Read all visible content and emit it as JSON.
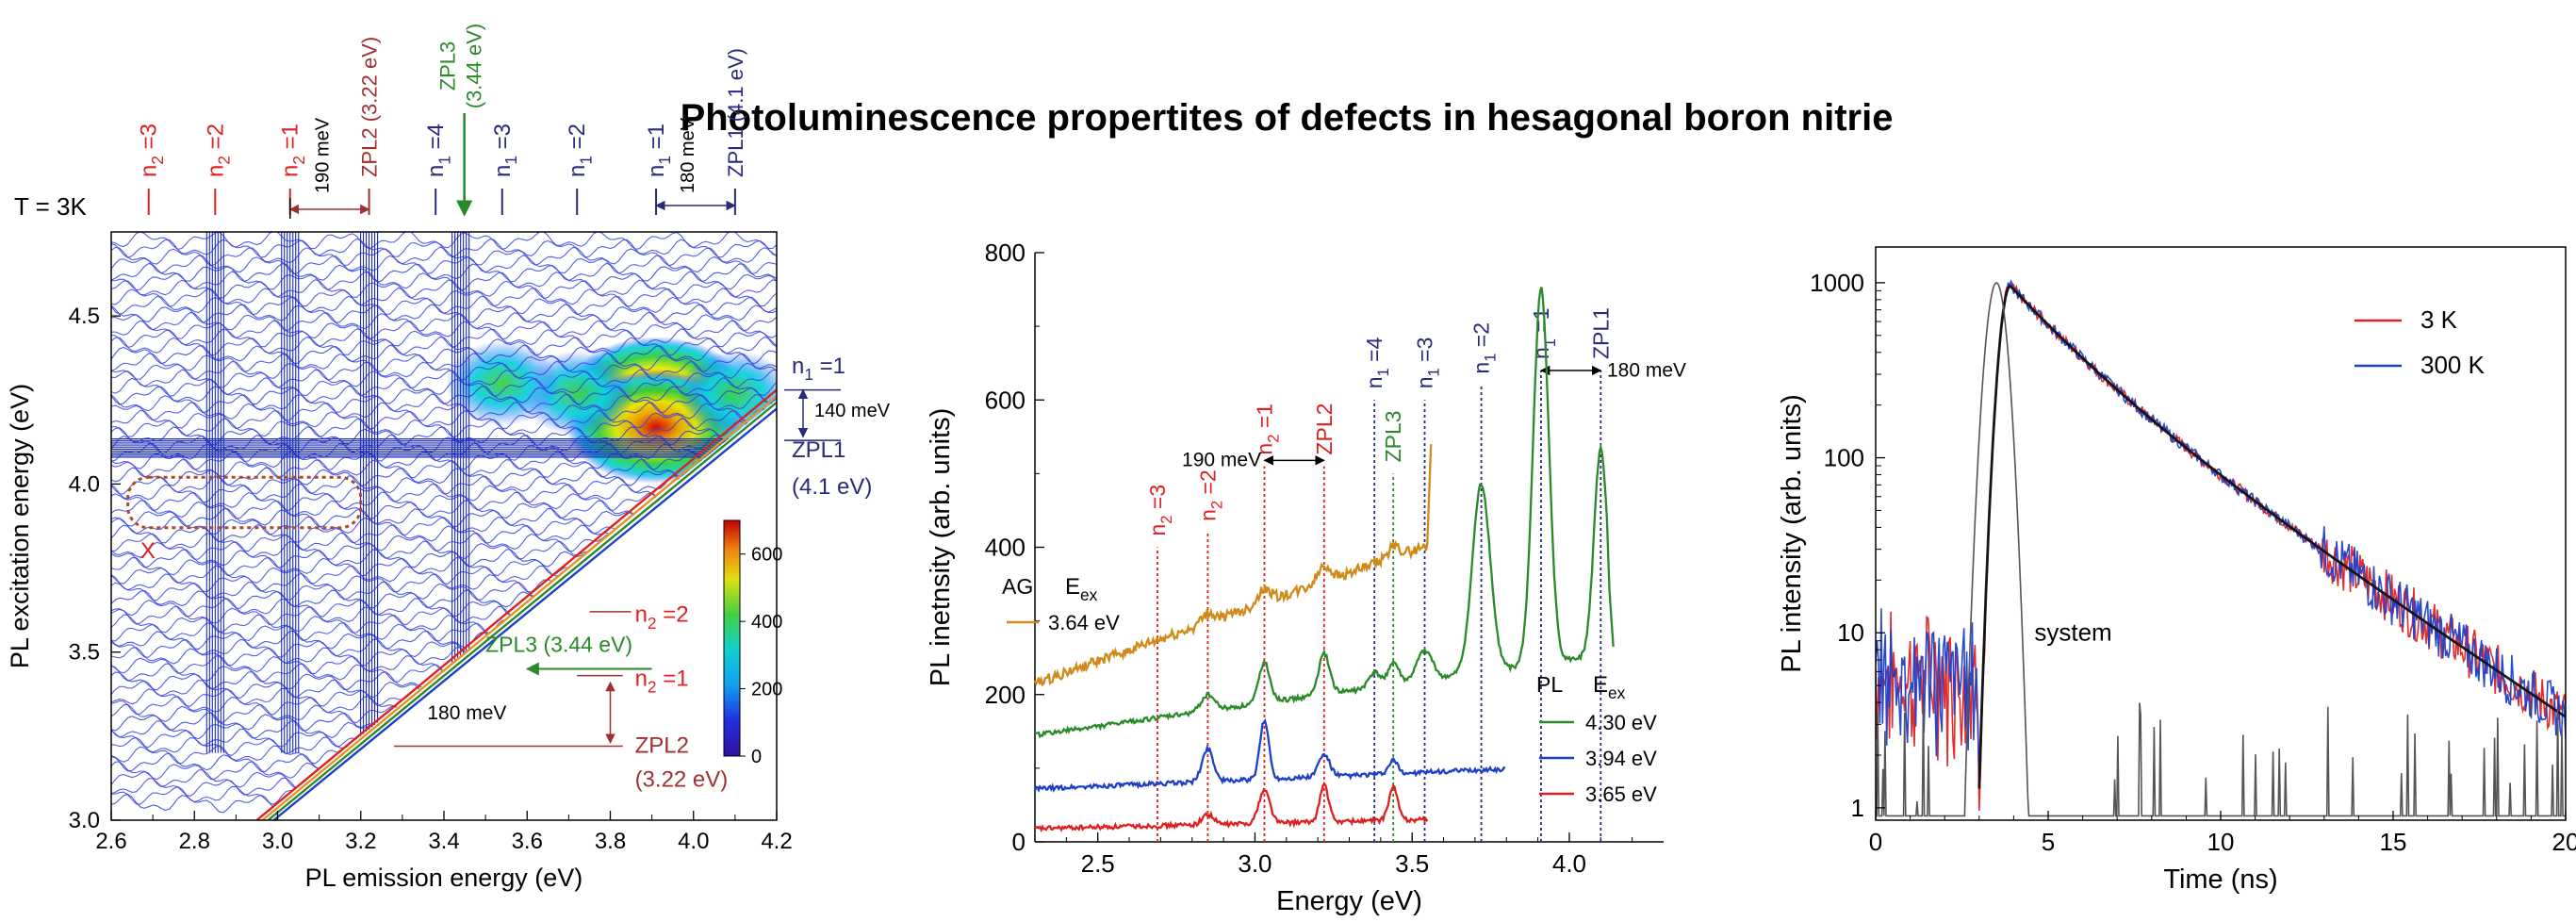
{
  "figure": {
    "title": "Photoluminescence propertites of defects in hesagonal boron nitrie"
  },
  "colors": {
    "red": "#e02020",
    "navy": "#2a2a7a",
    "green": "#2a8a2a",
    "blue": "#1f3fc8",
    "orange": "#d08a1a",
    "gray": "#555555",
    "darkred": "#a03030"
  },
  "chart_data": [
    {
      "id": "pl-map",
      "type": "heatmap",
      "xlabel": "PL emission energy (eV)",
      "ylabel": "PL excitation energy (eV)",
      "xlim": [
        2.6,
        4.2
      ],
      "ylim": [
        3.0,
        4.75
      ],
      "xticks": [
        "2.6",
        "2.8",
        "3.0",
        "3.2",
        "3.4",
        "3.6",
        "3.8",
        "4.0",
        "4.2"
      ],
      "yticks": [
        "3.0",
        "3.5",
        "4.0",
        "4.5"
      ],
      "colorbar": {
        "min": 0,
        "max": 700,
        "ticks": [
          "0",
          "200",
          "400",
          "600"
        ]
      },
      "temperature_label": "T = 3K",
      "top_markers": [
        {
          "label": "n₂=3",
          "x": 2.69,
          "color": "red"
        },
        {
          "label": "n₂=2",
          "x": 2.85,
          "color": "red"
        },
        {
          "label": "n₂=1",
          "x": 3.03,
          "color": "red"
        },
        {
          "label": "ZPL2 (3.22 eV)",
          "x": 3.22,
          "color": "darkred"
        },
        {
          "label": "n₁=4",
          "x": 3.38,
          "color": "navy"
        },
        {
          "label": "ZPL3 (3.44 eV)",
          "x": 3.44,
          "color": "green"
        },
        {
          "label": "n₁=3",
          "x": 3.54,
          "color": "navy"
        },
        {
          "label": "n₁=2",
          "x": 3.72,
          "color": "navy"
        },
        {
          "label": "n₁=1",
          "x": 3.91,
          "color": "navy"
        },
        {
          "label": "ZPL1 (4.1 eV)",
          "x": 4.1,
          "color": "navy"
        }
      ],
      "annotations": {
        "gap_190": "190 meV",
        "gap_180_top": "180 meV",
        "gap_140": "140 meV",
        "gap_180_side": "180 meV",
        "x_mark": "X",
        "right_n1": "n₁=1",
        "right_zpl1": "ZPL1",
        "right_zpl1_e": "(4.1 eV)",
        "right_n2_2": "n₂=2",
        "right_zpl3": "ZPL3 (3.44 eV)",
        "right_n2_1": "n₂=1",
        "right_zpl2": "ZPL2",
        "right_zpl2_e": "(3.22 eV)"
      },
      "vertical_streaks_x": [
        2.85,
        3.03,
        3.22,
        3.44
      ],
      "hot_spots": [
        {
          "x": 3.91,
          "y": 4.27,
          "v": 680
        },
        {
          "x": 3.91,
          "y": 4.17,
          "v": 700
        },
        {
          "x": 3.72,
          "y": 4.27,
          "v": 380
        },
        {
          "x": 3.54,
          "y": 4.3,
          "v": 250
        },
        {
          "x": 4.1,
          "y": 4.27,
          "v": 320
        }
      ]
    },
    {
      "id": "pl-spectra",
      "type": "line",
      "xlabel": "Energy (eV)",
      "ylabel": "PL inetnsity (arb. units)",
      "xlim": [
        2.3,
        4.3
      ],
      "ylim": [
        0,
        800
      ],
      "xticks": [
        "2.5",
        "3.0",
        "3.5",
        "4.0"
      ],
      "yticks": [
        "0",
        "200",
        "400",
        "600",
        "800"
      ],
      "legend_AG": {
        "header1": "AG",
        "header2": "E",
        "header2_sub": "ex",
        "entry": "3.64 eV",
        "color": "orange"
      },
      "legend_PL": {
        "header1": "PL",
        "header2": "E",
        "header2_sub": "ex",
        "placement": "bottom-right"
      },
      "series": [
        {
          "name": "3.64 eV",
          "color": "orange",
          "baseline": 215,
          "slope": 150,
          "x_end": 3.55,
          "peaks": [
            [
              2.85,
              12,
              0.03
            ],
            [
              3.03,
              18,
              0.03
            ],
            [
              3.22,
              22,
              0.03
            ],
            [
              3.44,
              14,
              0.03
            ]
          ]
        },
        {
          "name": "4.30 eV",
          "color": "green",
          "baseline": 145,
          "slope": 60,
          "x_end": 4.13,
          "peaks": [
            [
              2.85,
              22,
              0.03
            ],
            [
              3.03,
              55,
              0.025
            ],
            [
              3.22,
              55,
              0.025
            ],
            [
              3.38,
              20,
              0.025
            ],
            [
              3.44,
              30,
              0.025
            ],
            [
              3.54,
              40,
              0.035
            ],
            [
              3.72,
              255,
              0.04
            ],
            [
              3.91,
              510,
              0.035
            ],
            [
              4.1,
              280,
              0.03
            ]
          ]
        },
        {
          "name": "3.94 eV",
          "color": "blue",
          "baseline": 72,
          "slope": 18,
          "x_end": 3.8,
          "peaks": [
            [
              2.85,
              45,
              0.025
            ],
            [
              3.03,
              80,
              0.02
            ],
            [
              3.22,
              30,
              0.025
            ],
            [
              3.44,
              18,
              0.02
            ]
          ]
        },
        {
          "name": "3.65 eV",
          "color": "red",
          "baseline": 18,
          "slope": 10,
          "x_end": 3.55,
          "peaks": [
            [
              2.85,
              14,
              0.025
            ],
            [
              3.03,
              45,
              0.025
            ],
            [
              3.22,
              50,
              0.02
            ],
            [
              3.44,
              45,
              0.02
            ]
          ]
        }
      ],
      "markers": [
        {
          "label": "n₂=3",
          "x": 2.69,
          "color": "red",
          "y_top": 400
        },
        {
          "label": "n₂=2",
          "x": 2.85,
          "color": "red",
          "y_top": 420
        },
        {
          "label": "n₂=1",
          "x": 3.03,
          "color": "red",
          "y_top": 510
        },
        {
          "label": "ZPL2",
          "x": 3.22,
          "color": "red",
          "y_top": 510
        },
        {
          "label": "n₁=4",
          "x": 3.38,
          "color": "navy",
          "y_top": 600
        },
        {
          "label": "ZPL3",
          "x": 3.44,
          "color": "green",
          "y_top": 500
        },
        {
          "label": "n₁=3",
          "x": 3.54,
          "color": "navy",
          "y_top": 600
        },
        {
          "label": "n₁=2",
          "x": 3.72,
          "color": "navy",
          "y_top": 620
        },
        {
          "label": "n₁=1",
          "x": 3.91,
          "color": "navy",
          "y_top": 640
        },
        {
          "label": "ZPL1",
          "x": 4.1,
          "color": "navy",
          "y_top": 640
        }
      ],
      "annotations": {
        "gap_190": "190 meV",
        "gap_180": "180 meV"
      }
    },
    {
      "id": "pl-decay",
      "type": "line",
      "xlabel": "Time (ns)",
      "ylabel": "PL intensity (arb. units)",
      "xlim": [
        0,
        20
      ],
      "ylim": [
        0.85,
        1600
      ],
      "yscale": "log",
      "xticks": [
        "0",
        "5",
        "10",
        "15",
        "20"
      ],
      "yticks": [
        "1",
        "10",
        "100",
        "1000"
      ],
      "legend_placement": "top-right",
      "system_label": "system",
      "series": [
        {
          "name": "3 K",
          "color": "red",
          "tau_ns": 3.3,
          "peak_t": 3.9,
          "peak": 960
        },
        {
          "name": "300 K",
          "color": "blue",
          "tau_ns": 3.3,
          "peak_t": 3.9,
          "peak": 960
        },
        {
          "color": "black",
          "tau_ns": 3.3,
          "peak_t": 3.9,
          "peak": 960
        },
        {
          "color": "gray",
          "peak_t": 3.5,
          "peak": 1000,
          "width_ns": 0.35
        }
      ]
    }
  ]
}
